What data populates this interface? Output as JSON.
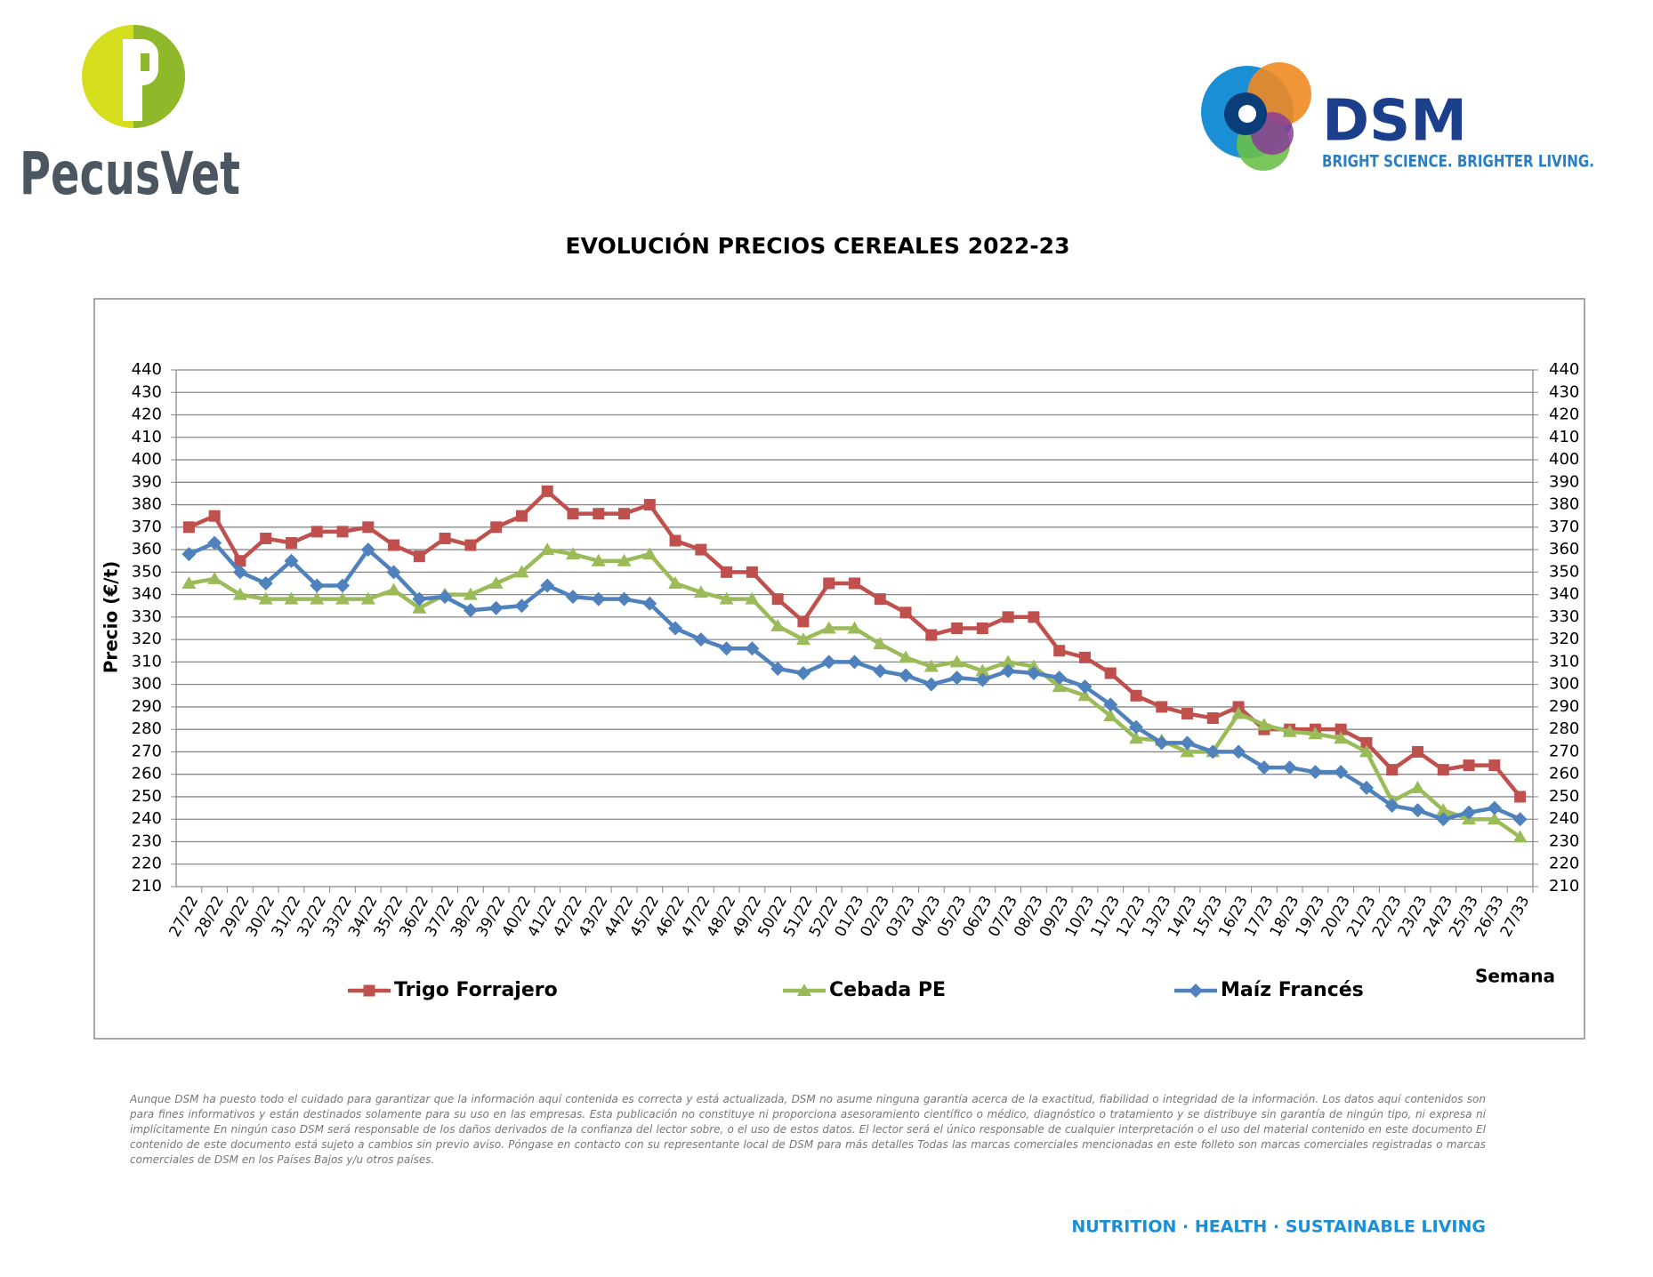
{
  "logos": {
    "left": "PecusVet",
    "right": "DSM",
    "right_tagline": "BRIGHT SCIENCE. BRIGHTER LIVING."
  },
  "chart_data": {
    "type": "line",
    "title": "EVOLUCIÓN PRECIOS CEREALES 2022-23",
    "y_label": "Precio (€/t)",
    "x_label": "Semana",
    "categories": [
      "27/22",
      "28/22",
      "29/22",
      "30/22",
      "31/22",
      "32/22",
      "33/22",
      "34/22",
      "35/22",
      "36/22",
      "37/22",
      "38/22",
      "39/22",
      "40/22",
      "41/22",
      "42/22",
      "43/22",
      "44/22",
      "45/22",
      "46/22",
      "47/22",
      "48/22",
      "49/22",
      "50/22",
      "51/22",
      "52/22",
      "01/23",
      "02/23",
      "03/23",
      "04/23",
      "05/23",
      "06/23",
      "07/23",
      "08/23",
      "09/23",
      "10/23",
      "11/23",
      "12/23",
      "13/23",
      "14/23",
      "15/23",
      "16/23",
      "17/23",
      "18/23",
      "19/23",
      "20/23",
      "21/23",
      "22/23",
      "23/23",
      "24/23",
      "25/33",
      "26/33",
      "27/33"
    ],
    "series": [
      {
        "name": "Trigo Forrajero",
        "color": "#c0504d",
        "marker": "square",
        "values": [
          370,
          375,
          355,
          365,
          363,
          368,
          368,
          370,
          362,
          357,
          365,
          362,
          370,
          375,
          386,
          376,
          376,
          376,
          380,
          364,
          360,
          350,
          350,
          338,
          328,
          345,
          345,
          338,
          332,
          322,
          325,
          325,
          330,
          330,
          315,
          312,
          305,
          295,
          290,
          287,
          285,
          290,
          280,
          280,
          280,
          280,
          274,
          262,
          270,
          262,
          264,
          264,
          250
        ]
      },
      {
        "name": "Cebada PE",
        "color": "#9bbb59",
        "marker": "triangle",
        "values": [
          345,
          347,
          340,
          338,
          338,
          338,
          338,
          338,
          342,
          334,
          340,
          340,
          345,
          350,
          360,
          358,
          355,
          355,
          358,
          345,
          341,
          338,
          338,
          326,
          320,
          325,
          325,
          318,
          312,
          308,
          310,
          306,
          310,
          308,
          299,
          295,
          286,
          276,
          275,
          270,
          270,
          287,
          282,
          279,
          278,
          276,
          270,
          248,
          254,
          244,
          240,
          240,
          232
        ]
      },
      {
        "name": "Maíz Francés",
        "color": "#4f81bd",
        "marker": "diamond",
        "values": [
          358,
          363,
          350,
          345,
          355,
          344,
          344,
          360,
          350,
          338,
          339,
          333,
          334,
          335,
          344,
          339,
          338,
          338,
          336,
          325,
          320,
          316,
          316,
          307,
          305,
          310,
          310,
          306,
          304,
          300,
          303,
          302,
          306,
          305,
          303,
          299,
          291,
          281,
          274,
          274,
          270,
          270,
          263,
          263,
          261,
          261,
          254,
          246,
          244,
          240,
          243,
          245,
          240
        ]
      }
    ],
    "ylim": [
      210,
      440
    ],
    "yticks": [
      210,
      220,
      230,
      240,
      250,
      260,
      270,
      280,
      290,
      300,
      310,
      320,
      330,
      340,
      350,
      360,
      370,
      380,
      390,
      400,
      410,
      420,
      430,
      440
    ],
    "grid": true
  },
  "disclaimer": "Aunque DSM ha puesto todo el cuidado para garantizar que la información aquí contenida es correcta y está actualizada, DSM no asume ninguna garantía acerca de la exactitud, fiabilidad o integridad de la información. Los datos aquí contenidos son para fines informativos y están destinados solamente para su uso en las empresas. Esta publicación no constituye ni proporciona asesoramiento científico o médico, diagnóstico o tratamiento y se distribuye sin garantía de ningún tipo, ni expresa ni implícitamente En ningún caso DSM será responsable de los daños derivados de la confianza del lector sobre, o el uso de estos datos. El lector será el único responsable de cualquier interpretación o el uso del material contenido en este documento El contenido de este documento está sujeto a cambios sin previo aviso. Póngase en contacto con su representante local de DSM para más detalles Todas las marcas comerciales mencionadas en este folleto son marcas comerciales registradas o marcas comerciales de DSM en los Países Bajos y/u otros países.",
  "footer": "NUTRITION · HEALTH · SUSTAINABLE LIVING"
}
